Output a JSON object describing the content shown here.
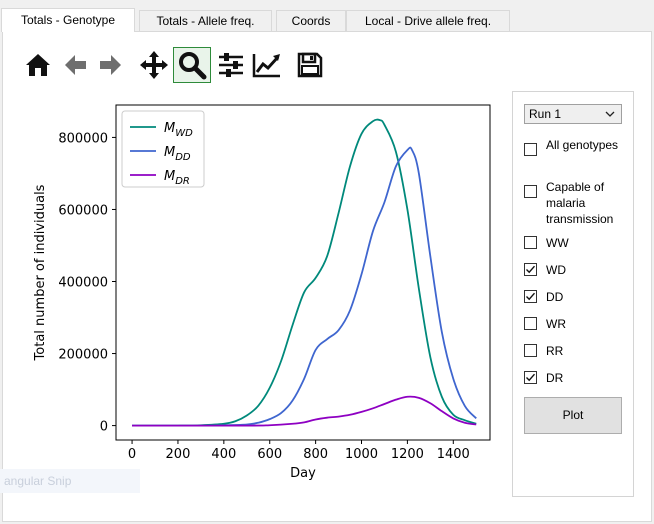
{
  "tabs": [
    {
      "label": "Totals - Genotype",
      "active": true
    },
    {
      "label": "Totals - Allele freq.",
      "active": false
    },
    {
      "label": "Coords",
      "active": false
    },
    {
      "label": "Local - Drive allele freq.",
      "active": false
    }
  ],
  "toolbar": {
    "buttons": [
      {
        "icon": "home-icon",
        "checked": false
      },
      {
        "icon": "back-arrow-icon",
        "checked": false
      },
      {
        "icon": "forward-arrow-icon",
        "checked": false
      },
      {
        "icon": "pan-icon",
        "checked": false
      },
      {
        "icon": "zoom-icon",
        "checked": true
      },
      {
        "icon": "subplots-icon",
        "checked": false
      },
      {
        "icon": "edit-curve-icon",
        "checked": false
      },
      {
        "icon": "save-icon",
        "checked": false
      }
    ]
  },
  "sidebar": {
    "run_select": {
      "value": "Run 1"
    },
    "checkboxes": [
      {
        "label": "All genotypes",
        "checked": false
      },
      {
        "label": "Capable of malaria transmission",
        "checked": false
      },
      {
        "label": "WW",
        "checked": false
      },
      {
        "label": "WD",
        "checked": true
      },
      {
        "label": "DD",
        "checked": true
      },
      {
        "label": "WR",
        "checked": false
      },
      {
        "label": "RR",
        "checked": false
      },
      {
        "label": "DR",
        "checked": true
      }
    ],
    "plot_button": "Plot"
  },
  "status_text": "angular Snip",
  "chart_data": {
    "type": "line",
    "title": "",
    "xlabel": "Day",
    "ylabel": "Total number of individuals",
    "xlim": [
      -70,
      1560
    ],
    "ylim": [
      -40000,
      890000
    ],
    "xticks": [
      0,
      200,
      400,
      600,
      800,
      1000,
      1200,
      1400
    ],
    "yticks": [
      0,
      200000,
      400000,
      600000,
      800000
    ],
    "grid": false,
    "legend_position": "top-left",
    "series": [
      {
        "name_base": "M",
        "name_sub": "WD",
        "color": "#00897b",
        "x": [
          0,
          200,
          300,
          400,
          450,
          500,
          550,
          600,
          650,
          700,
          750,
          800,
          850,
          900,
          950,
          1000,
          1050,
          1080,
          1100,
          1150,
          1200,
          1250,
          1300,
          1350,
          1400,
          1450,
          1500
        ],
        "y": [
          0,
          0,
          1000,
          5000,
          12000,
          28000,
          55000,
          105000,
          180000,
          280000,
          370000,
          410000,
          470000,
          590000,
          720000,
          810000,
          845000,
          848000,
          835000,
          760000,
          600000,
          380000,
          190000,
          80000,
          30000,
          15000,
          5000
        ]
      },
      {
        "name_base": "M",
        "name_sub": "DD",
        "color": "#3f66cf",
        "x": [
          0,
          300,
          400,
          500,
          550,
          600,
          650,
          700,
          750,
          800,
          850,
          900,
          950,
          1000,
          1050,
          1100,
          1150,
          1200,
          1220,
          1250,
          1300,
          1350,
          1400,
          1450,
          1500
        ],
        "y": [
          0,
          0,
          1000,
          3000,
          8000,
          18000,
          35000,
          70000,
          130000,
          210000,
          240000,
          265000,
          320000,
          420000,
          540000,
          620000,
          720000,
          765000,
          765000,
          700000,
          470000,
          260000,
          130000,
          55000,
          20000
        ]
      },
      {
        "name_base": "M",
        "name_sub": "DR",
        "color": "#8e00c2",
        "x": [
          0,
          500,
          600,
          700,
          750,
          800,
          850,
          900,
          950,
          1000,
          1050,
          1100,
          1150,
          1200,
          1250,
          1300,
          1350,
          1400,
          1450,
          1500
        ],
        "y": [
          0,
          0,
          1000,
          5000,
          9000,
          17000,
          22000,
          25000,
          30000,
          38000,
          48000,
          60000,
          72000,
          80000,
          77000,
          62000,
          40000,
          20000,
          8000,
          3000
        ]
      }
    ]
  }
}
